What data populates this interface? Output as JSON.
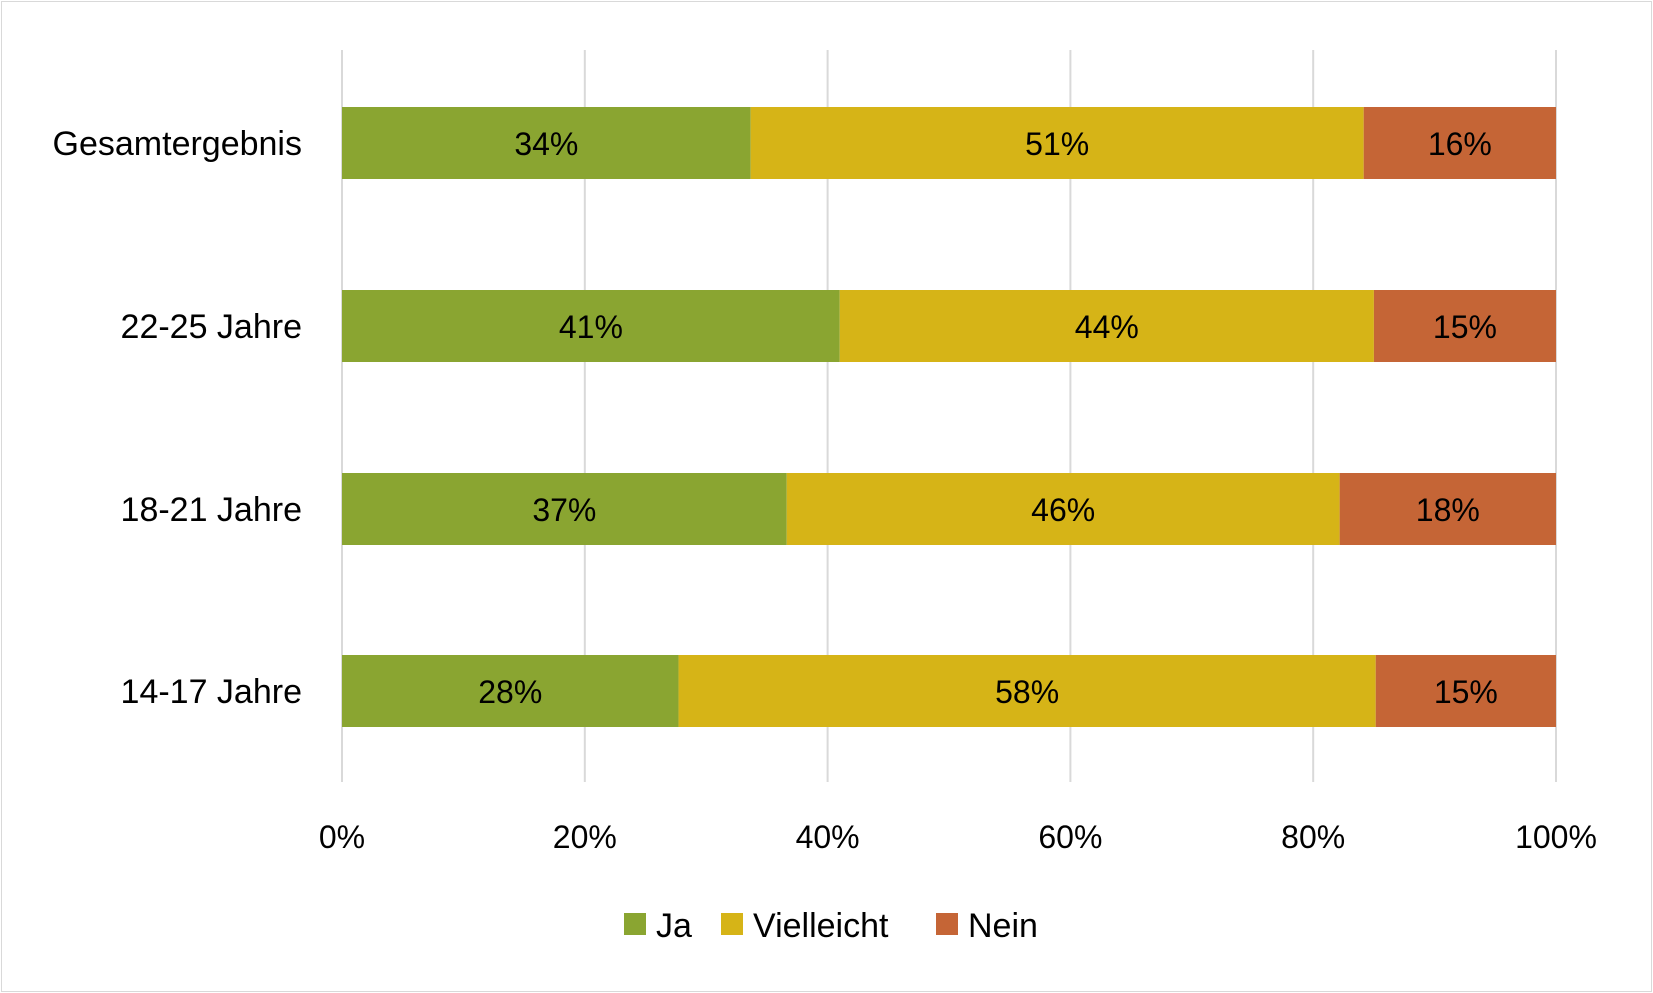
{
  "chart_data": {
    "type": "bar",
    "orientation": "horizontal",
    "stacked": true,
    "percent_stacked": true,
    "title": "",
    "xlabel": "",
    "ylabel": "",
    "categories": [
      "Gesamtergebnis",
      "22-25 Jahre",
      "18-21 Jahre",
      "14-17 Jahre"
    ],
    "series": [
      {
        "name": "Ja",
        "color": "#8aa531",
        "values": [
          34,
          41,
          37,
          28
        ],
        "labels": [
          "34%",
          "41%",
          "37%",
          "28%"
        ]
      },
      {
        "name": "Vielleicht",
        "color": "#d6b417",
        "values": [
          51,
          44,
          46,
          58
        ],
        "labels": [
          "51%",
          "44%",
          "46%",
          "58%"
        ]
      },
      {
        "name": "Nein",
        "color": "#c56536",
        "values": [
          16,
          15,
          18,
          15
        ],
        "labels": [
          "16%",
          "15%",
          "18%",
          "15%"
        ]
      }
    ],
    "xlim": [
      0,
      100
    ],
    "xticks": [
      0,
      20,
      40,
      60,
      80,
      100
    ],
    "xtick_labels": [
      "0%",
      "20%",
      "40%",
      "60%",
      "80%",
      "100%"
    ],
    "grid": "vertical",
    "legend_position": "bottom"
  }
}
